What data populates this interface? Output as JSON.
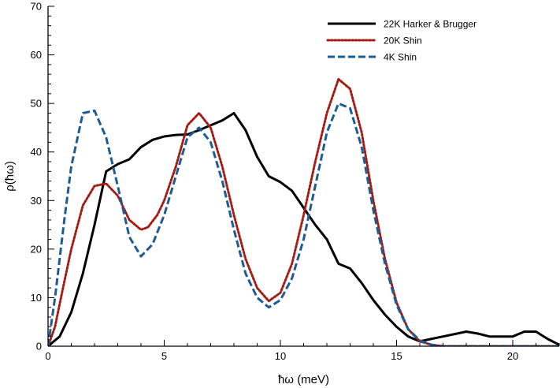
{
  "chart_data": {
    "type": "line",
    "title": "",
    "xlabel": "ħω (meV)",
    "ylabel": "ρ(ħω)",
    "xlim": [
      0,
      22
    ],
    "ylim": [
      0,
      70
    ],
    "x_ticks": [
      0,
      5,
      10,
      15,
      20
    ],
    "y_ticks": [
      0,
      10,
      20,
      30,
      40,
      50,
      60,
      70
    ],
    "grid": false,
    "legend_position": "top-right",
    "series": [
      {
        "name": "22K Harker & Brugger",
        "color": "#000000",
        "style": "solid",
        "points": [
          [
            0,
            0
          ],
          [
            0.5,
            2
          ],
          [
            1,
            7
          ],
          [
            1.5,
            15
          ],
          [
            2,
            25
          ],
          [
            2.5,
            36
          ],
          [
            3,
            37.5
          ],
          [
            3.5,
            38.5
          ],
          [
            4,
            41
          ],
          [
            4.5,
            42.5
          ],
          [
            5,
            43.2
          ],
          [
            5.5,
            43.5
          ],
          [
            6,
            43.6
          ],
          [
            6.5,
            44.5
          ],
          [
            7,
            45.5
          ],
          [
            7.5,
            46.5
          ],
          [
            8,
            48
          ],
          [
            8.5,
            44.5
          ],
          [
            9,
            39
          ],
          [
            9.5,
            35
          ],
          [
            10,
            33.8
          ],
          [
            10.5,
            32
          ],
          [
            11,
            28.5
          ],
          [
            11.5,
            25
          ],
          [
            12,
            22
          ],
          [
            12.5,
            17
          ],
          [
            13,
            16
          ],
          [
            13.5,
            13
          ],
          [
            14,
            9.5
          ],
          [
            14.5,
            6.5
          ],
          [
            15,
            4
          ],
          [
            15.5,
            2
          ],
          [
            16,
            1
          ],
          [
            16.5,
            1.5
          ],
          [
            17,
            2
          ],
          [
            17.5,
            2.5
          ],
          [
            18,
            3
          ],
          [
            18.5,
            2.6
          ],
          [
            19,
            2
          ],
          [
            19.5,
            2
          ],
          [
            20,
            2
          ],
          [
            20.5,
            3
          ],
          [
            21,
            3
          ],
          [
            21.5,
            1.5
          ],
          [
            22,
            0.3
          ]
        ]
      },
      {
        "name": "20K Shin",
        "color": "#A21D14",
        "style": "dotted",
        "points": [
          [
            0,
            0
          ],
          [
            0.3,
            4
          ],
          [
            0.6,
            11
          ],
          [
            1,
            20
          ],
          [
            1.5,
            29
          ],
          [
            2,
            33
          ],
          [
            2.5,
            33.5
          ],
          [
            3,
            31
          ],
          [
            3.5,
            26
          ],
          [
            4,
            24
          ],
          [
            4.3,
            24.5
          ],
          [
            4.7,
            27
          ],
          [
            5,
            30
          ],
          [
            5.5,
            37
          ],
          [
            6,
            45.5
          ],
          [
            6.5,
            48
          ],
          [
            7,
            45
          ],
          [
            7.5,
            37
          ],
          [
            8,
            27
          ],
          [
            8.5,
            18
          ],
          [
            9,
            12
          ],
          [
            9.5,
            9.3
          ],
          [
            10,
            11
          ],
          [
            10.5,
            17
          ],
          [
            11,
            27
          ],
          [
            11.5,
            38
          ],
          [
            12,
            48
          ],
          [
            12.5,
            55
          ],
          [
            13,
            53
          ],
          [
            13.5,
            44
          ],
          [
            14,
            30
          ],
          [
            14.5,
            18
          ],
          [
            15,
            9
          ],
          [
            15.5,
            3.5
          ],
          [
            16,
            1
          ],
          [
            16.5,
            0.3
          ],
          [
            17,
            0
          ],
          [
            22,
            0
          ]
        ]
      },
      {
        "name": "4K Shin",
        "color": "#1D5C94",
        "style": "dashed",
        "points": [
          [
            0,
            0
          ],
          [
            0.3,
            10
          ],
          [
            0.7,
            26
          ],
          [
            1,
            37
          ],
          [
            1.5,
            48
          ],
          [
            2,
            48.5
          ],
          [
            2.5,
            43
          ],
          [
            3,
            33
          ],
          [
            3.5,
            22.5
          ],
          [
            4,
            18.5
          ],
          [
            4.5,
            21
          ],
          [
            5,
            27
          ],
          [
            5.5,
            35
          ],
          [
            6,
            43
          ],
          [
            6.5,
            45
          ],
          [
            7,
            42
          ],
          [
            7.5,
            34
          ],
          [
            8,
            24
          ],
          [
            8.5,
            15
          ],
          [
            9,
            10
          ],
          [
            9.5,
            8
          ],
          [
            10,
            9.5
          ],
          [
            10.5,
            14
          ],
          [
            11,
            22
          ],
          [
            11.5,
            33
          ],
          [
            12,
            44
          ],
          [
            12.5,
            50
          ],
          [
            13,
            49
          ],
          [
            13.5,
            41
          ],
          [
            14,
            28
          ],
          [
            14.5,
            17
          ],
          [
            15,
            8.5
          ],
          [
            15.5,
            3.5
          ],
          [
            16,
            1.2
          ],
          [
            16.5,
            0.3
          ],
          [
            17,
            0
          ],
          [
            22,
            0
          ]
        ]
      }
    ]
  }
}
